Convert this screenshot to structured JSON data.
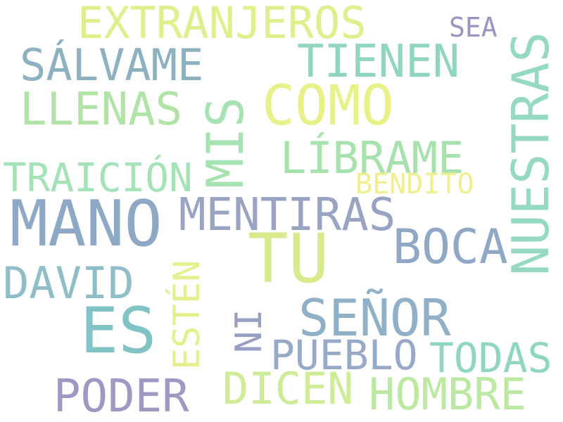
{
  "words": [
    {
      "id": "extranjeros",
      "text": "EXTRANJEROS",
      "color": "#e0ee8c"
    },
    {
      "id": "sea",
      "text": "SEA",
      "color": "#9b92bf"
    },
    {
      "id": "salvame",
      "text": "SÁLVAME",
      "color": "#8eb1c0"
    },
    {
      "id": "tienen",
      "text": "TIENEN",
      "color": "#8fd6bd"
    },
    {
      "id": "llenas",
      "text": "LLENAS",
      "color": "#b1e3a6"
    },
    {
      "id": "mis",
      "text": "MIS",
      "color": "#a7e2b2"
    },
    {
      "id": "como",
      "text": "COMO",
      "color": "#e7f188"
    },
    {
      "id": "nuestras",
      "text": "NUESTRAS",
      "color": "#95d8c3"
    },
    {
      "id": "librame",
      "text": "LÍBRAME",
      "color": "#a7e2ae"
    },
    {
      "id": "traicion",
      "text": "TRAICIÓN",
      "color": "#a4e2b8"
    },
    {
      "id": "bendito",
      "text": "BENDITO",
      "color": "#f1ee8f"
    },
    {
      "id": "mano",
      "text": "MANO",
      "color": "#8da9c6"
    },
    {
      "id": "mentiras",
      "text": "MENTIRAS",
      "color": "#98a4c2"
    },
    {
      "id": "tu",
      "text": "TU",
      "color": "#d6eb8c"
    },
    {
      "id": "boca",
      "text": "BOCA",
      "color": "#90a8c6"
    },
    {
      "id": "david",
      "text": "DAVID",
      "color": "#8fbdc8"
    },
    {
      "id": "esten",
      "text": "ESTÉN",
      "color": "#e6ef90"
    },
    {
      "id": "es",
      "text": "ES",
      "color": "#80c3c4"
    },
    {
      "id": "ni",
      "text": "NI",
      "color": "#97a0c4"
    },
    {
      "id": "senor",
      "text": "SEÑOR",
      "color": "#8fb0c6"
    },
    {
      "id": "pueblo",
      "text": "PUEBLO",
      "color": "#97a9c6"
    },
    {
      "id": "todas",
      "text": "TODAS",
      "color": "#8fd6c1"
    },
    {
      "id": "poder",
      "text": "PODER",
      "color": "#9e99c3"
    },
    {
      "id": "dicen",
      "text": "DICEN",
      "color": "#cdec95"
    },
    {
      "id": "hombre",
      "text": "HOMBRE",
      "color": "#bde8a2"
    }
  ]
}
